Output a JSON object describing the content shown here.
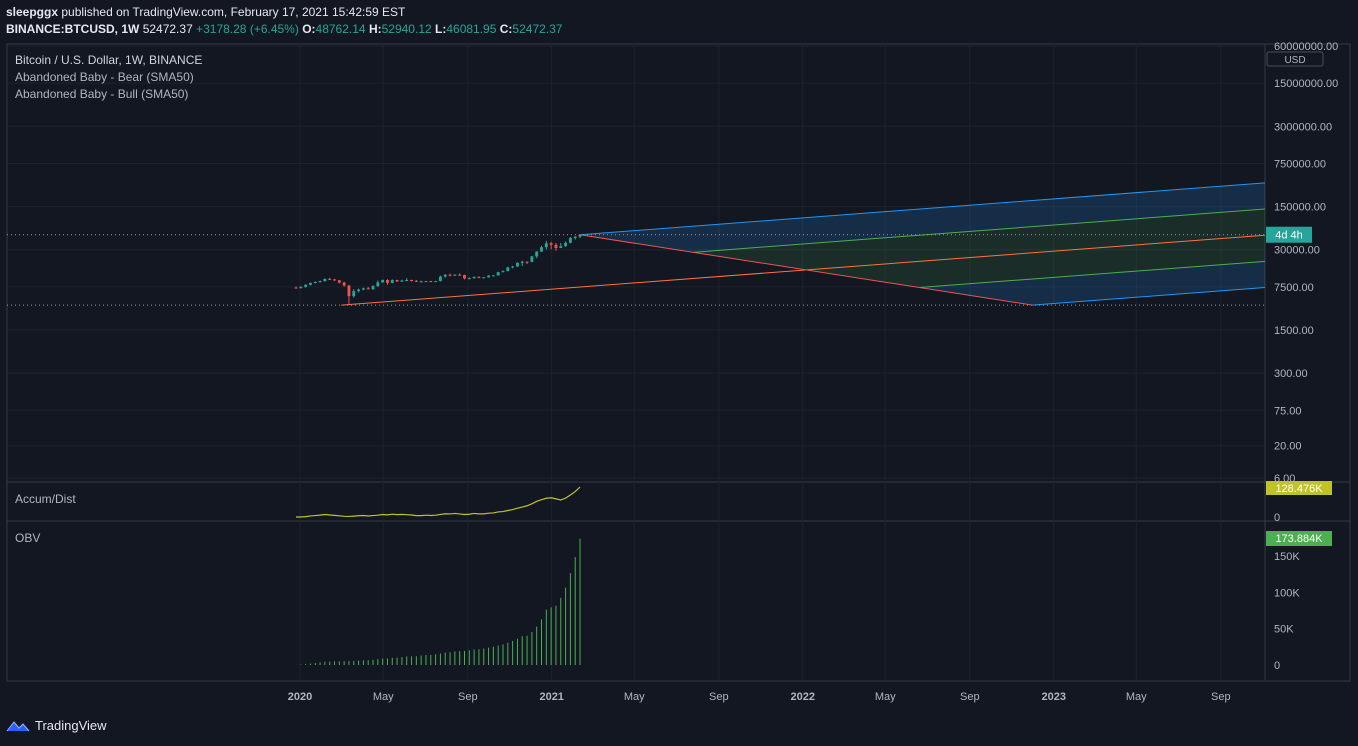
{
  "header": {
    "author": "sleepggx",
    "published_text": "published on TradingView.com, February 17, 2021 15:42:59 EST",
    "symbol": "BINANCE:BTCUSD, 1W",
    "last": "52472.37",
    "change": "+3178.28 (+6.45%)",
    "o_label": "O:",
    "o_val": "48762.14",
    "h_label": "H:",
    "h_val": "52940.12",
    "l_label": "L:",
    "l_val": "46081.95",
    "c_label": "C:",
    "c_val": "52472.37"
  },
  "legend": {
    "title": "Bitcoin / U.S. Dollar, 1W, BINANCE",
    "indicator1": "Abandoned Baby - Bear (SMA50)",
    "indicator2": "Abandoned Baby - Bull (SMA50)"
  },
  "price_axis": {
    "currency": "USD",
    "ticks": [
      "60000000.00",
      "15000000.00",
      "3000000.00",
      "750000.00",
      "150000.00",
      "30000.00",
      "7500.00",
      "1500.00",
      "300.00",
      "75.00",
      "20.00",
      "6.00"
    ],
    "countdown": "4d 4h"
  },
  "accum_pane": {
    "label": "Accum/Dist",
    "value": "128.476K",
    "ticks": [
      "0"
    ]
  },
  "obv_pane": {
    "label": "OBV",
    "value": "173.884K",
    "ticks": [
      "150K",
      "100K",
      "50K",
      "0"
    ]
  },
  "time_axis": {
    "labels": [
      "2020",
      "May",
      "Sep",
      "2021",
      "May",
      "Sep",
      "2022",
      "May",
      "Sep",
      "2023",
      "May",
      "Sep"
    ],
    "bold": [
      "2020",
      "2021",
      "2022",
      "2023"
    ]
  },
  "colors": {
    "background": "#131722",
    "up": "#26a69a",
    "down": "#ef5350",
    "fan_outer": "#2196f3",
    "fan_inner": "#4caf50",
    "median": "#ff7043",
    "accum": "#c0c22a",
    "obv": "#4caf50"
  },
  "brand": {
    "name": "TradingView"
  },
  "chart_data": {
    "type": "candlestick",
    "interval": "1W",
    "scale": "log",
    "x_range": [
      "2019-12",
      "2023-11"
    ],
    "price_range": [
      6,
      60000000
    ],
    "candles": [
      {
        "o": 7300,
        "h": 7600,
        "l": 7100,
        "c": 7200
      },
      {
        "o": 7200,
        "h": 7700,
        "l": 7000,
        "c": 7500
      },
      {
        "o": 7500,
        "h": 8300,
        "l": 7300,
        "c": 8100
      },
      {
        "o": 8100,
        "h": 8800,
        "l": 7900,
        "c": 8700
      },
      {
        "o": 8700,
        "h": 9200,
        "l": 8500,
        "c": 9000
      },
      {
        "o": 9000,
        "h": 9500,
        "l": 8800,
        "c": 9300
      },
      {
        "o": 9300,
        "h": 10300,
        "l": 9100,
        "c": 10100
      },
      {
        "o": 10100,
        "h": 10500,
        "l": 9700,
        "c": 9900
      },
      {
        "o": 9900,
        "h": 10100,
        "l": 9400,
        "c": 9600
      },
      {
        "o": 9600,
        "h": 9700,
        "l": 8500,
        "c": 8800
      },
      {
        "o": 8800,
        "h": 9100,
        "l": 7600,
        "c": 7900
      },
      {
        "o": 7900,
        "h": 8000,
        "l": 3800,
        "c": 5300
      },
      {
        "o": 5300,
        "h": 6900,
        "l": 5000,
        "c": 6400
      },
      {
        "o": 6400,
        "h": 7000,
        "l": 6100,
        "c": 6800
      },
      {
        "o": 6800,
        "h": 7300,
        "l": 6600,
        "c": 7100
      },
      {
        "o": 7100,
        "h": 7500,
        "l": 6800,
        "c": 6900
      },
      {
        "o": 6900,
        "h": 8000,
        "l": 6700,
        "c": 7700
      },
      {
        "o": 7700,
        "h": 9500,
        "l": 7500,
        "c": 8900
      },
      {
        "o": 8900,
        "h": 9900,
        "l": 8700,
        "c": 9700
      },
      {
        "o": 9700,
        "h": 10000,
        "l": 8100,
        "c": 8700
      },
      {
        "o": 8700,
        "h": 9900,
        "l": 8600,
        "c": 9700
      },
      {
        "o": 9700,
        "h": 9800,
        "l": 9000,
        "c": 9200
      },
      {
        "o": 9200,
        "h": 9800,
        "l": 9000,
        "c": 9500
      },
      {
        "o": 9500,
        "h": 10400,
        "l": 9300,
        "c": 9700
      },
      {
        "o": 9700,
        "h": 9800,
        "l": 9200,
        "c": 9400
      },
      {
        "o": 9400,
        "h": 9700,
        "l": 9000,
        "c": 9100
      },
      {
        "o": 9100,
        "h": 9500,
        "l": 8900,
        "c": 9200
      },
      {
        "o": 9200,
        "h": 9400,
        "l": 9000,
        "c": 9300
      },
      {
        "o": 9300,
        "h": 9400,
        "l": 9100,
        "c": 9200
      },
      {
        "o": 9200,
        "h": 9400,
        "l": 9100,
        "c": 9300
      },
      {
        "o": 9300,
        "h": 11400,
        "l": 9200,
        "c": 11000
      },
      {
        "o": 11000,
        "h": 12100,
        "l": 10600,
        "c": 11800
      },
      {
        "o": 11800,
        "h": 12300,
        "l": 11100,
        "c": 11600
      },
      {
        "o": 11600,
        "h": 12000,
        "l": 11300,
        "c": 11800
      },
      {
        "o": 11800,
        "h": 12400,
        "l": 11400,
        "c": 11700
      },
      {
        "o": 11700,
        "h": 11800,
        "l": 9900,
        "c": 10300
      },
      {
        "o": 10300,
        "h": 10700,
        "l": 9900,
        "c": 10400
      },
      {
        "o": 10400,
        "h": 11000,
        "l": 10200,
        "c": 10900
      },
      {
        "o": 10900,
        "h": 11100,
        "l": 10400,
        "c": 10600
      },
      {
        "o": 10600,
        "h": 10900,
        "l": 10500,
        "c": 10700
      },
      {
        "o": 10700,
        "h": 11600,
        "l": 10600,
        "c": 11400
      },
      {
        "o": 11400,
        "h": 11700,
        "l": 11200,
        "c": 11500
      },
      {
        "o": 11500,
        "h": 13200,
        "l": 11400,
        "c": 13000
      },
      {
        "o": 13000,
        "h": 13900,
        "l": 12800,
        "c": 13500
      },
      {
        "o": 13500,
        "h": 15900,
        "l": 13400,
        "c": 15500
      },
      {
        "o": 15500,
        "h": 16400,
        "l": 15000,
        "c": 16100
      },
      {
        "o": 16100,
        "h": 18800,
        "l": 15800,
        "c": 18400
      },
      {
        "o": 18400,
        "h": 19900,
        "l": 16300,
        "c": 19200
      },
      {
        "o": 19200,
        "h": 19400,
        "l": 17600,
        "c": 19100
      },
      {
        "o": 19100,
        "h": 23800,
        "l": 18800,
        "c": 23400
      },
      {
        "o": 23400,
        "h": 28400,
        "l": 21800,
        "c": 28000
      },
      {
        "o": 28000,
        "h": 34800,
        "l": 27700,
        "c": 33000
      },
      {
        "o": 33000,
        "h": 41900,
        "l": 30200,
        "c": 38200
      },
      {
        "o": 38200,
        "h": 40300,
        "l": 30400,
        "c": 36000
      },
      {
        "o": 36000,
        "h": 38500,
        "l": 28800,
        "c": 32000
      },
      {
        "o": 32000,
        "h": 38600,
        "l": 31900,
        "c": 34200
      },
      {
        "o": 34200,
        "h": 40900,
        "l": 33400,
        "c": 38900
      },
      {
        "o": 38900,
        "h": 48200,
        "l": 38000,
        "c": 46500
      },
      {
        "o": 46500,
        "h": 49700,
        "l": 43700,
        "c": 48800
      },
      {
        "o": 48762.14,
        "h": 52940.12,
        "l": 46081.95,
        "c": 52472.37
      }
    ],
    "pitchfork": {
      "p1": {
        "time": "2020-03",
        "price": 3800
      },
      "p2": {
        "time": "2021-02",
        "price": 52472
      },
      "p3": {
        "time": "2022-12",
        "price": 3800
      }
    },
    "accum_dist_latest": 128476,
    "obv_latest": 173884
  }
}
